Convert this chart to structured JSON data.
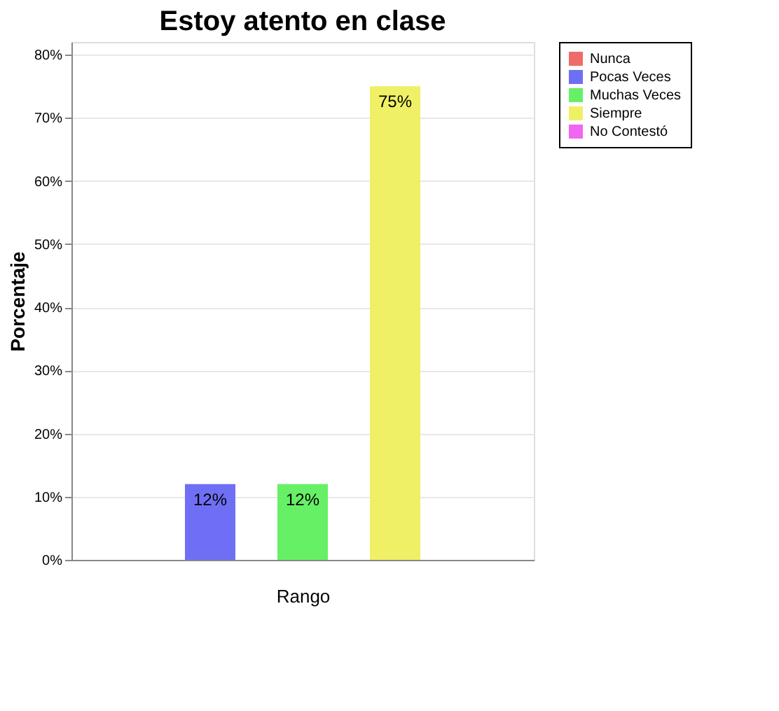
{
  "chart_data": {
    "type": "bar",
    "title": "Estoy atento en clase",
    "xlabel": "Rango",
    "ylabel": "Porcentaje",
    "categories": [
      null,
      null,
      null,
      null,
      null
    ],
    "series": [
      {
        "name": "Nunca",
        "color": "#f06a6a",
        "values": [
          0,
          null,
          null,
          null,
          null
        ]
      },
      {
        "name": "Pocas Veces",
        "color": "#6f6ff5",
        "values": [
          null,
          12,
          null,
          null,
          null
        ],
        "value_labels": [
          null,
          "12%",
          null,
          null,
          null
        ]
      },
      {
        "name": "Muchas Veces",
        "color": "#66f066",
        "values": [
          null,
          null,
          12,
          null,
          null
        ],
        "value_labels": [
          null,
          null,
          "12%",
          null,
          null
        ]
      },
      {
        "name": "Siempre",
        "color": "#f0f066",
        "values": [
          null,
          null,
          null,
          75,
          null
        ],
        "value_labels": [
          null,
          null,
          null,
          "75%",
          null
        ]
      },
      {
        "name": "No Contestó",
        "color": "#f066f0",
        "values": [
          null,
          null,
          null,
          null,
          0
        ]
      }
    ],
    "ylim": [
      0,
      82
    ],
    "yticks": [
      {
        "value": 0,
        "label": "0%"
      },
      {
        "value": 10,
        "label": "10%"
      },
      {
        "value": 20,
        "label": "20%"
      },
      {
        "value": 30,
        "label": "30%"
      },
      {
        "value": 40,
        "label": "40%"
      },
      {
        "value": 50,
        "label": "50%"
      },
      {
        "value": 60,
        "label": "60%"
      },
      {
        "value": 70,
        "label": "70%"
      },
      {
        "value": 80,
        "label": "80%"
      }
    ],
    "grid": "y",
    "legend": "right",
    "tick_labels": "y"
  }
}
